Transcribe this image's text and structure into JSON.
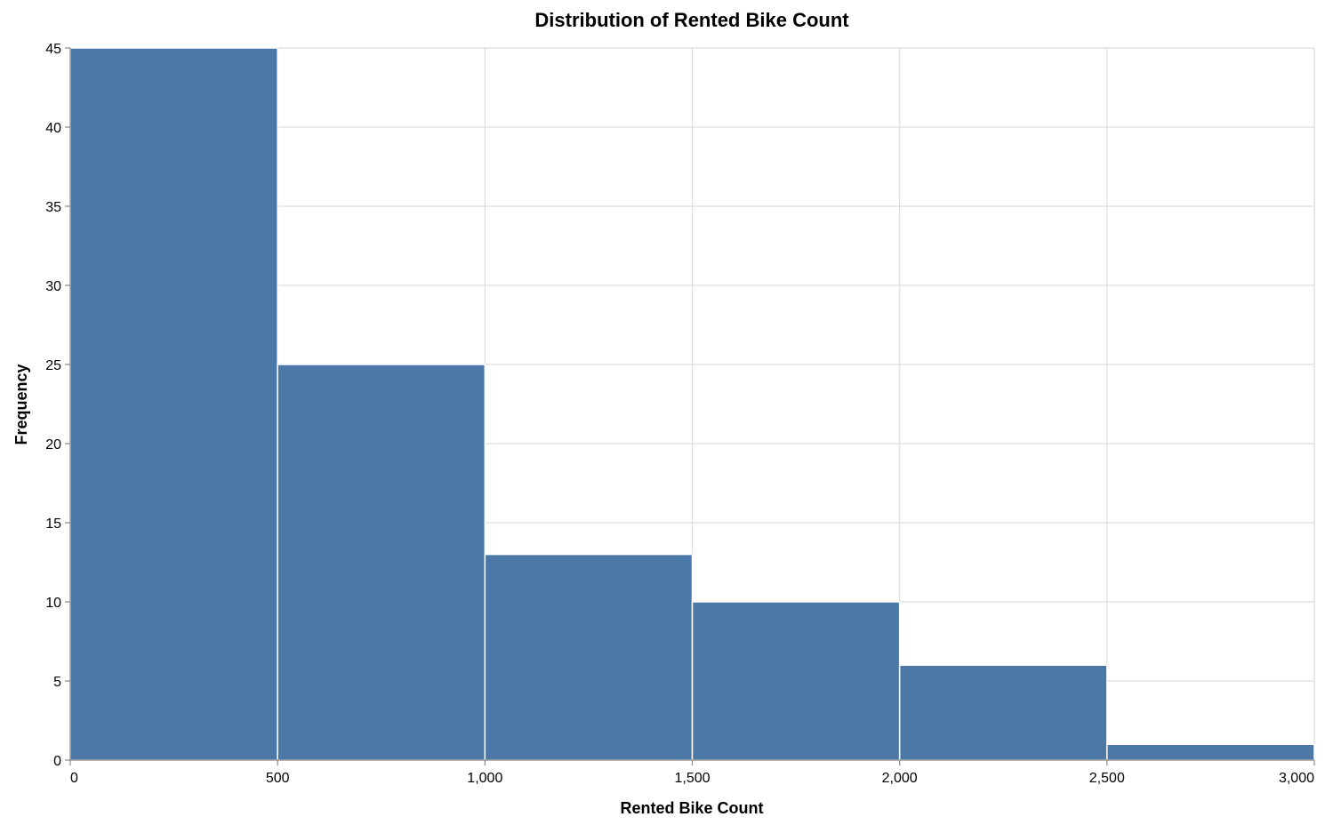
{
  "chart_data": {
    "type": "bar",
    "title": "Distribution of Rented Bike Count",
    "xlabel": "Rented Bike Count",
    "ylabel": "Frequency",
    "bins": [
      {
        "start": 0,
        "end": 500,
        "count": 45
      },
      {
        "start": 500,
        "end": 1000,
        "count": 25
      },
      {
        "start": 1000,
        "end": 1500,
        "count": 13
      },
      {
        "start": 1500,
        "end": 2000,
        "count": 10
      },
      {
        "start": 2000,
        "end": 2500,
        "count": 6
      },
      {
        "start": 2500,
        "end": 3000,
        "count": 1
      }
    ],
    "xlim": [
      0,
      3000
    ],
    "ylim": [
      0,
      45
    ],
    "xticks": [
      0,
      500,
      1000,
      1500,
      2000,
      2500,
      3000
    ],
    "xtick_labels": [
      "0",
      "500",
      "1,000",
      "1,500",
      "2,000",
      "2,500",
      "3,000"
    ],
    "yticks": [
      0,
      5,
      10,
      15,
      20,
      25,
      30,
      35,
      40,
      45
    ],
    "ytick_labels": [
      "0",
      "5",
      "10",
      "15",
      "20",
      "25",
      "30",
      "35",
      "40",
      "45"
    ],
    "grid": true,
    "bar_color": "#4c78a8"
  }
}
